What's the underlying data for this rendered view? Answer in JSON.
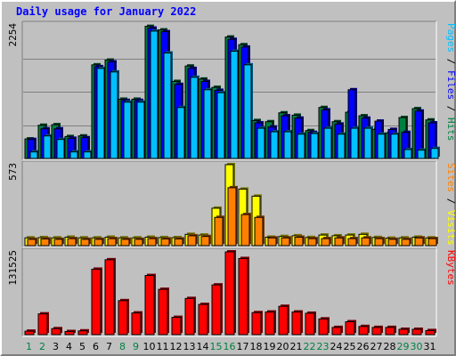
{
  "title": "Daily usage for January 2022",
  "colors": {
    "hits": "#008040",
    "files": "#0000ff",
    "pages": "#00c0ff",
    "visits": "#ffff00",
    "sites": "#ff8000",
    "kbytes": "#ff0000",
    "weekend": "#008040",
    "weekday": "#000000"
  },
  "chart_data": [
    {
      "type": "bar",
      "categories": [
        "1",
        "2",
        "3",
        "4",
        "5",
        "6",
        "7",
        "8",
        "9",
        "10",
        "11",
        "12",
        "13",
        "14",
        "15",
        "16",
        "17",
        "18",
        "19",
        "20",
        "21",
        "22",
        "23",
        "24",
        "25",
        "26",
        "27",
        "28",
        "29",
        "30",
        "31"
      ],
      "weekend_days": [
        "1",
        "2",
        "8",
        "9",
        "15",
        "16",
        "22",
        "23",
        "29",
        "30"
      ],
      "ymax_label": "2254",
      "ylim": [
        0,
        2254
      ],
      "axis_parts": [
        {
          "text": "Pages",
          "series": "pages"
        },
        {
          "text": " / ",
          "series": null
        },
        {
          "text": "Files",
          "series": "files"
        },
        {
          "text": " / ",
          "series": null
        },
        {
          "text": "Hits",
          "series": "hits"
        }
      ],
      "series": [
        {
          "name": "Hits",
          "key": "hits",
          "values": [
            330,
            560,
            570,
            370,
            380,
            1580,
            1660,
            1000,
            1000,
            2230,
            2170,
            1300,
            1560,
            1340,
            1200,
            2050,
            1920,
            640,
            620,
            770,
            730,
            470,
            860,
            620,
            780,
            720,
            490,
            430,
            690,
            840,
            650
          ]
        },
        {
          "name": "Files",
          "key": "files",
          "values": [
            320,
            500,
            500,
            340,
            350,
            1550,
            1630,
            980,
            980,
            2200,
            2140,
            1250,
            1520,
            1300,
            1150,
            2010,
            1880,
            600,
            530,
            720,
            680,
            440,
            820,
            580,
            1160,
            680,
            630,
            490,
            440,
            800,
            600
          ]
        },
        {
          "name": "Pages",
          "key": "pages",
          "values": [
            110,
            380,
            320,
            110,
            110,
            1520,
            1460,
            950,
            950,
            2150,
            1780,
            860,
            1370,
            1160,
            1110,
            1810,
            1580,
            510,
            450,
            450,
            410,
            420,
            510,
            410,
            510,
            510,
            410,
            410,
            150,
            140,
            170
          ]
        }
      ]
    },
    {
      "type": "bar",
      "categories": [
        "1",
        "2",
        "3",
        "4",
        "5",
        "6",
        "7",
        "8",
        "9",
        "10",
        "11",
        "12",
        "13",
        "14",
        "15",
        "16",
        "17",
        "18",
        "19",
        "20",
        "21",
        "22",
        "23",
        "24",
        "25",
        "26",
        "27",
        "28",
        "29",
        "30",
        "31"
      ],
      "ymax_label": "573",
      "ylim": [
        0,
        573
      ],
      "axis_parts": [
        {
          "text": "Sites",
          "series": "sites"
        },
        {
          "text": " / ",
          "series": null
        },
        {
          "text": "Visits",
          "series": "visits"
        }
      ],
      "series": [
        {
          "name": "Visits",
          "key": "visits",
          "values": [
            55,
            57,
            55,
            60,
            55,
            55,
            60,
            55,
            55,
            60,
            57,
            57,
            80,
            75,
            265,
            573,
            400,
            350,
            60,
            65,
            70,
            58,
            75,
            70,
            75,
            80,
            58,
            53,
            55,
            60,
            55
          ]
        },
        {
          "name": "Sites",
          "key": "sites",
          "values": [
            45,
            48,
            45,
            50,
            45,
            45,
            50,
            45,
            45,
            50,
            48,
            48,
            70,
            65,
            200,
            410,
            220,
            200,
            55,
            55,
            60,
            50,
            50,
            55,
            50,
            55,
            50,
            45,
            45,
            55,
            50
          ]
        }
      ]
    },
    {
      "type": "bar",
      "categories": [
        "1",
        "2",
        "3",
        "4",
        "5",
        "6",
        "7",
        "8",
        "9",
        "10",
        "11",
        "12",
        "13",
        "14",
        "15",
        "16",
        "17",
        "18",
        "19",
        "20",
        "21",
        "22",
        "23",
        "24",
        "25",
        "26",
        "27",
        "28",
        "29",
        "30",
        "31"
      ],
      "ymax_label": "131525",
      "ylim": [
        0,
        131525
      ],
      "axis_parts": [
        {
          "text": "KBytes",
          "series": "kbytes"
        }
      ],
      "series": [
        {
          "name": "KBytes",
          "key": "kbytes",
          "values": [
            5500,
            33000,
            9500,
            5000,
            6000,
            104000,
            119000,
            54000,
            34500,
            94000,
            72000,
            27500,
            57500,
            48000,
            79000,
            131525,
            121000,
            35000,
            36000,
            45000,
            36000,
            34000,
            25000,
            11500,
            20500,
            13000,
            11500,
            11500,
            8500,
            8500,
            6500
          ]
        }
      ]
    }
  ]
}
